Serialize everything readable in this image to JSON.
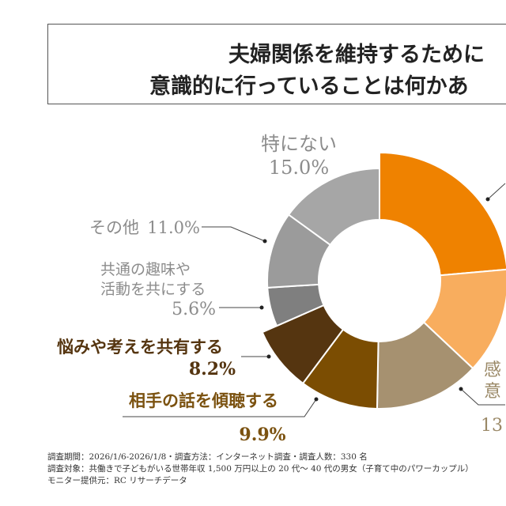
{
  "title": {
    "line1": "夫婦関係を維持するために",
    "line2": "意識的に行っていることは何かあ"
  },
  "chart_data": {
    "type": "pie",
    "donut": true,
    "slices": [
      {
        "label": "",
        "value": 23.6,
        "color": "#ef8200",
        "exploded": true
      },
      {
        "label": "",
        "value": 13.4,
        "color": "#f8ad5e",
        "exploded": true
      },
      {
        "label_lines": [
          "感",
          "意"
        ],
        "value_text": "13",
        "value": 13.3,
        "color": "#a69170",
        "exploded": true
      },
      {
        "label": "相手の話を傾聴する",
        "value_text": "9.9%",
        "value": 9.9,
        "color": "#7b4d02",
        "exploded": true
      },
      {
        "label": "悩みや考えを共有する",
        "value_text": "8.2%",
        "value": 8.2,
        "color": "#553510",
        "exploded": true
      },
      {
        "label_lines": [
          "共通の趣味や",
          "活動を共にする"
        ],
        "value_text": "5.6%",
        "value": 5.6,
        "color": "#7f7f7f",
        "exploded": false
      },
      {
        "label": "その他",
        "value_text": "11.0%",
        "value": 11.0,
        "color": "#9b9b9b",
        "exploded": false
      },
      {
        "label": "特にない",
        "value_text": "15.0%",
        "value": 15.0,
        "color": "#a6a6a6",
        "exploded": false
      }
    ]
  },
  "footnotes": [
    "調査期間：2026/1/6-2026/1/8・調査方法：インターネット調査・調査人数：330 名",
    "調査対象：共働きで子どもがいる世帯年収 1,500 万円以上の 20 代〜 40 代の男女（子育て中のパワーカップル）",
    "モニター提供元：RC リサーチデータ"
  ]
}
